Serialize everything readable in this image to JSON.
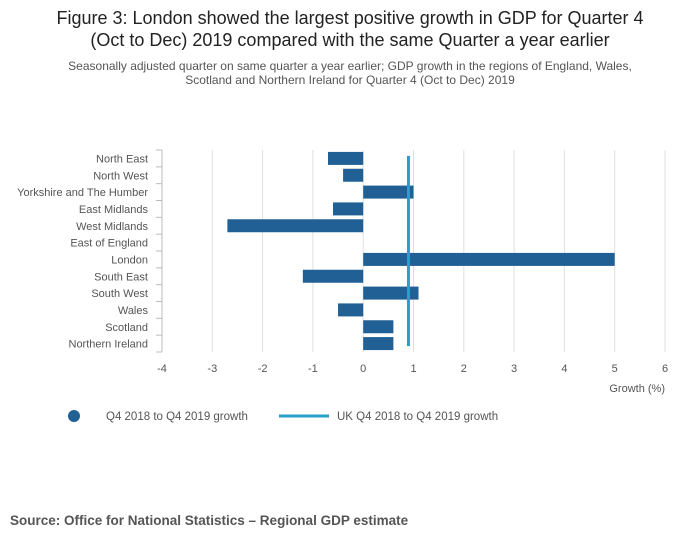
{
  "title_lines": [
    "Figure 3: London showed the largest positive growth in GDP for Quarter 4",
    "(Oct to Dec) 2019 compared with the same Quarter a year earlier"
  ],
  "subtitle_lines": [
    "Seasonally adjusted quarter on same quarter a year earlier; GDP growth in the regions of England, Wales,",
    "Scotland and Northern Ireland for Quarter 4 (Oct to Dec) 2019"
  ],
  "chart_data": {
    "type": "bar",
    "orientation": "horizontal",
    "categories": [
      "North East",
      "North West",
      "Yorkshire and The Humber",
      "East Midlands",
      "West Midlands",
      "East of England",
      "London",
      "South East",
      "South West",
      "Wales",
      "Scotland",
      "Northern Ireland"
    ],
    "series": [
      {
        "name": "Q4 2018 to Q4 2019 growth",
        "values": [
          -0.7,
          -0.4,
          1.0,
          -0.6,
          -2.7,
          0.0,
          5.0,
          -1.2,
          1.1,
          -0.5,
          0.6,
          0.6
        ]
      }
    ],
    "reference_line": {
      "name": "UK Q4 2018 to Q4 2019 growth",
      "value": 0.9
    },
    "xlim": [
      -4,
      6
    ],
    "xticks": [
      "-4",
      "-3",
      "-2",
      "-1",
      "0",
      "1",
      "2",
      "3",
      "4",
      "5",
      "6"
    ],
    "xlabel": "Growth (%)",
    "ylabel": "",
    "grid": true,
    "legend_position": "bottom-left"
  },
  "colors": {
    "bar": "#206095",
    "reference_line": "#27a0cc",
    "grid": "#e0e0e0",
    "axis": "#bbbbbb",
    "text": "#555555"
  },
  "source": "Source: Office for National Statistics – Regional GDP estimate"
}
